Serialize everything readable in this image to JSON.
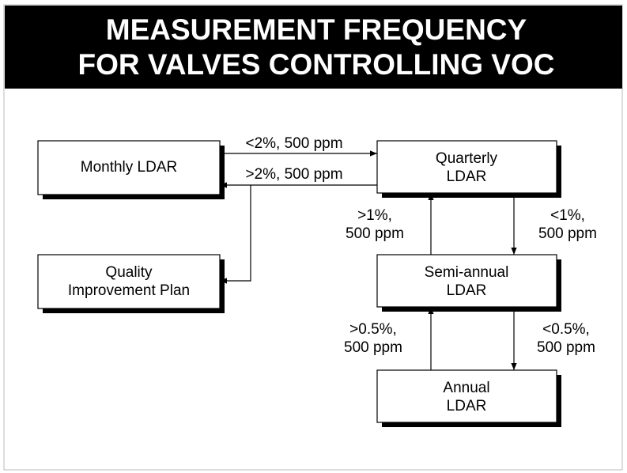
{
  "header": {
    "title_lines": [
      "MEASUREMENT FREQUENCY",
      "FOR VALVES CONTROLLING VOC"
    ]
  },
  "nodes": [
    {
      "label_lines": [
        "Monthly LDAR"
      ]
    },
    {
      "label_lines": [
        "Quarterly",
        "LDAR"
      ]
    },
    {
      "label_lines": [
        "Quality",
        "Improvement Plan"
      ]
    },
    {
      "label_lines": [
        "Semi-annual",
        "LDAR"
      ]
    },
    {
      "label_lines": [
        "Annual",
        "LDAR"
      ]
    }
  ],
  "edges": [
    {
      "label_lines": [
        "<2%, 500 ppm"
      ]
    },
    {
      "label_lines": [
        ">2%, 500 ppm"
      ]
    },
    {
      "label_lines": [
        ">1%,",
        "500 ppm"
      ]
    },
    {
      "label_lines": [
        "<1%,",
        "500 ppm"
      ]
    },
    {
      "label_lines": [
        ">0.5%,",
        "500 ppm"
      ]
    },
    {
      "label_lines": [
        "<0.5%,",
        "500 ppm"
      ]
    }
  ]
}
